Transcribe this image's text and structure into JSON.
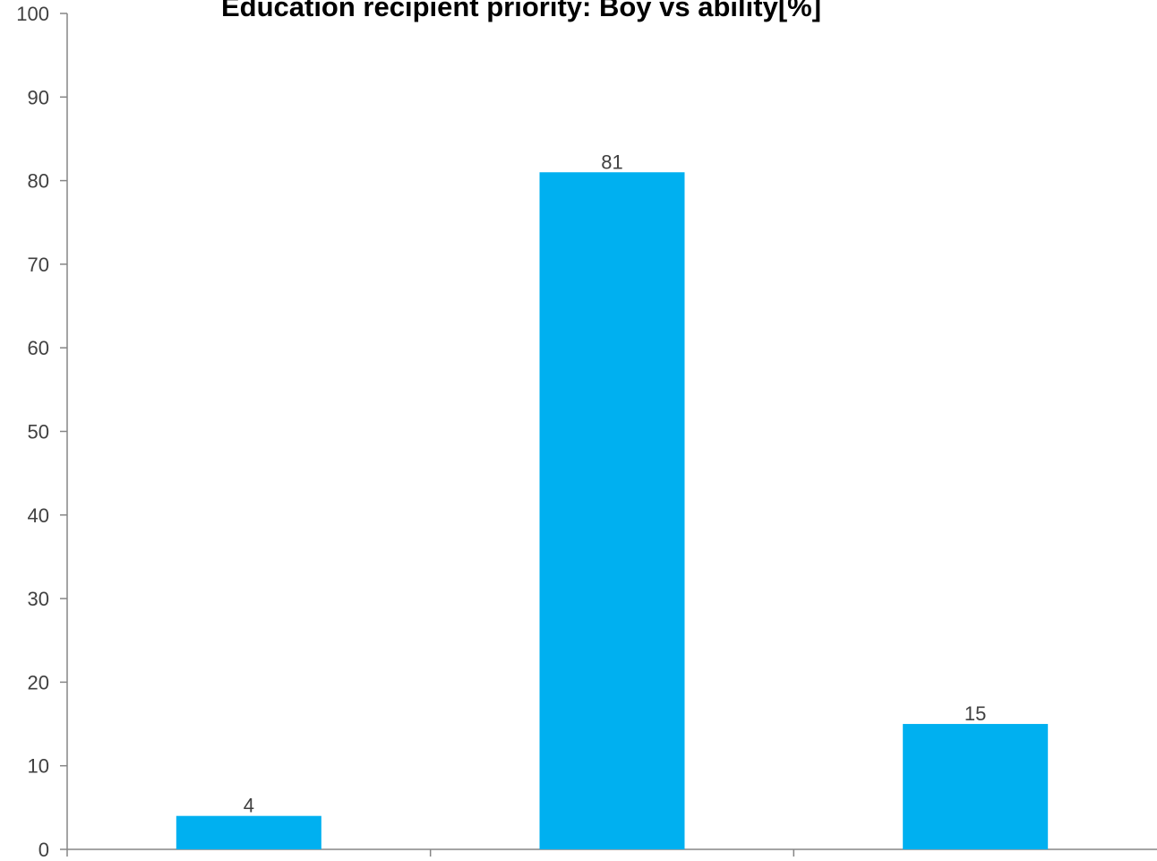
{
  "chart_data": {
    "type": "bar",
    "title": "Education recipient priority: Boy vs ability[%]",
    "xlabel": "",
    "ylabel": "",
    "categories": [
      "",
      "",
      ""
    ],
    "values": [
      4,
      81,
      15
    ],
    "data_labels": [
      "4",
      "81",
      "15"
    ],
    "ylim": [
      0,
      100
    ],
    "yticks": [
      0,
      10,
      20,
      30,
      40,
      50,
      60,
      70,
      80,
      90,
      100
    ],
    "grid": false,
    "legend": "none",
    "bar_color": "#00B0F0",
    "axis_color": "#868686"
  }
}
